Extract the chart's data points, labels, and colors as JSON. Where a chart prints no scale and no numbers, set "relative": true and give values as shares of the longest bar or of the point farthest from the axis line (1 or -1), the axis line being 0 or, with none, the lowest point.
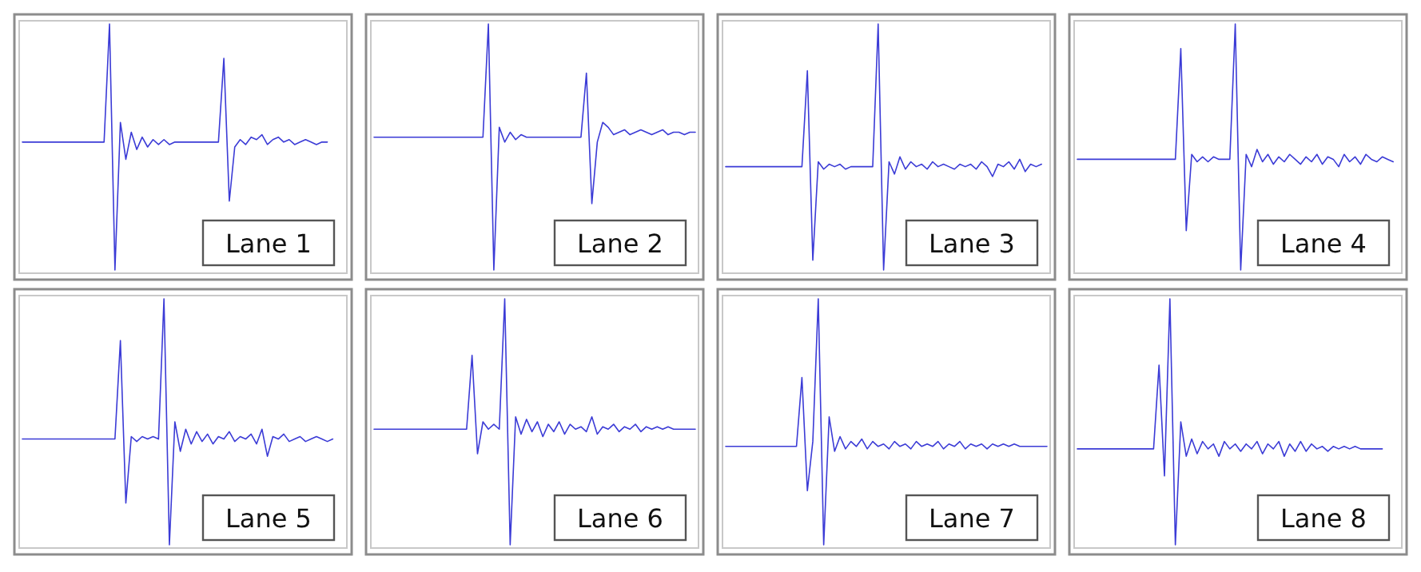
{
  "chart_data": [
    {
      "type": "line",
      "title": "Lane 1",
      "relative": true,
      "color": "#3b3bd6",
      "categories": [
        null,
        null,
        null,
        null,
        null,
        null,
        null,
        null,
        null,
        null,
        null,
        null,
        null,
        null,
        null,
        null,
        null,
        null,
        null,
        null,
        null,
        null,
        null,
        null,
        null,
        null,
        null,
        null,
        null,
        null,
        null,
        null,
        null,
        null,
        null,
        null,
        null,
        null,
        null,
        null,
        null,
        null,
        null,
        null,
        null,
        null,
        null,
        null,
        null,
        null,
        null,
        null,
        null,
        null,
        null,
        null,
        null,
        null,
        null,
        null
      ],
      "values": [
        0.52,
        0.52,
        0.52,
        0.52,
        0.52,
        0.52,
        0.52,
        0.52,
        0.52,
        0.52,
        0.52,
        0.52,
        0.52,
        0.52,
        0.52,
        0.52,
        1,
        0,
        0.6,
        0.45,
        0.56,
        0.49,
        0.54,
        0.5,
        0.53,
        0.51,
        0.53,
        0.51,
        0.52,
        0.52,
        0.52,
        0.52,
        0.52,
        0.52,
        0.52,
        0.52,
        0.52,
        0.86,
        0.28,
        0.5,
        0.53,
        0.51,
        0.54,
        0.53,
        0.55,
        0.51,
        0.53,
        0.54,
        0.52,
        0.53,
        0.51,
        0.52,
        0.53,
        0.52,
        0.51,
        0.52,
        0.52,
        null,
        null,
        null
      ]
    },
    {
      "type": "line",
      "title": "Lane 2",
      "relative": true,
      "color": "#3b3bd6",
      "categories": [
        null,
        null,
        null,
        null,
        null,
        null,
        null,
        null,
        null,
        null,
        null,
        null,
        null,
        null,
        null,
        null,
        null,
        null,
        null,
        null,
        null,
        null,
        null,
        null,
        null,
        null,
        null,
        null,
        null,
        null,
        null,
        null,
        null,
        null,
        null,
        null,
        null,
        null,
        null,
        null,
        null,
        null,
        null,
        null,
        null,
        null,
        null,
        null,
        null,
        null,
        null,
        null,
        null,
        null,
        null,
        null,
        null,
        null,
        null,
        null
      ],
      "values": [
        0.54,
        0.54,
        0.54,
        0.54,
        0.54,
        0.54,
        0.54,
        0.54,
        0.54,
        0.54,
        0.54,
        0.54,
        0.54,
        0.54,
        0.54,
        0.54,
        0.54,
        0.54,
        0.54,
        0.54,
        0.54,
        1,
        0,
        0.58,
        0.52,
        0.56,
        0.53,
        0.55,
        0.54,
        0.54,
        0.54,
        0.54,
        0.54,
        0.54,
        0.54,
        0.54,
        0.54,
        0.54,
        0.54,
        0.8,
        0.27,
        0.52,
        0.6,
        0.58,
        0.55,
        0.56,
        0.57,
        0.55,
        0.56,
        0.57,
        0.56,
        0.55,
        0.56,
        0.57,
        0.55,
        0.56,
        0.56,
        0.55,
        0.56,
        0.56
      ]
    },
    {
      "type": "line",
      "title": "Lane 3",
      "relative": true,
      "color": "#3b3bd6",
      "categories": [
        null,
        null,
        null,
        null,
        null,
        null,
        null,
        null,
        null,
        null,
        null,
        null,
        null,
        null,
        null,
        null,
        null,
        null,
        null,
        null,
        null,
        null,
        null,
        null,
        null,
        null,
        null,
        null,
        null,
        null,
        null,
        null,
        null,
        null,
        null,
        null,
        null,
        null,
        null,
        null,
        null,
        null,
        null,
        null,
        null,
        null,
        null,
        null,
        null,
        null,
        null,
        null,
        null,
        null,
        null,
        null,
        null,
        null,
        null,
        null
      ],
      "values": [
        0.42,
        0.42,
        0.42,
        0.42,
        0.42,
        0.42,
        0.42,
        0.42,
        0.42,
        0.42,
        0.42,
        0.42,
        0.42,
        0.42,
        0.42,
        0.81,
        0.04,
        0.44,
        0.41,
        0.43,
        0.42,
        0.43,
        0.41,
        0.42,
        0.42,
        0.42,
        0.42,
        0.42,
        1,
        0,
        0.44,
        0.39,
        0.46,
        0.41,
        0.44,
        0.42,
        0.43,
        0.41,
        0.44,
        0.42,
        0.43,
        0.42,
        0.41,
        0.43,
        0.42,
        0.43,
        0.41,
        0.44,
        0.42,
        0.38,
        0.43,
        0.42,
        0.44,
        0.41,
        0.45,
        0.4,
        0.43,
        0.42,
        0.43,
        null
      ]
    },
    {
      "type": "line",
      "title": "Lane 4",
      "relative": true,
      "color": "#3b3bd6",
      "categories": [
        null,
        null,
        null,
        null,
        null,
        null,
        null,
        null,
        null,
        null,
        null,
        null,
        null,
        null,
        null,
        null,
        null,
        null,
        null,
        null,
        null,
        null,
        null,
        null,
        null,
        null,
        null,
        null,
        null,
        null,
        null,
        null,
        null,
        null,
        null,
        null,
        null,
        null,
        null,
        null,
        null,
        null,
        null,
        null,
        null,
        null,
        null,
        null,
        null,
        null,
        null,
        null,
        null,
        null,
        null,
        null,
        null,
        null,
        null,
        null
      ],
      "values": [
        0.45,
        0.45,
        0.45,
        0.45,
        0.45,
        0.45,
        0.45,
        0.45,
        0.45,
        0.45,
        0.45,
        0.45,
        0.45,
        0.45,
        0.45,
        0.45,
        0.45,
        0.45,
        0.45,
        0.9,
        0.16,
        0.47,
        0.44,
        0.46,
        0.44,
        0.46,
        0.45,
        0.45,
        0.45,
        1,
        0,
        0.47,
        0.42,
        0.49,
        0.44,
        0.47,
        0.43,
        0.46,
        0.44,
        0.47,
        0.45,
        0.43,
        0.46,
        0.44,
        0.47,
        0.43,
        0.46,
        0.45,
        0.42,
        0.47,
        0.44,
        0.46,
        0.43,
        0.47,
        0.45,
        0.44,
        0.46,
        0.45,
        0.44,
        null
      ]
    },
    {
      "type": "line",
      "title": "Lane 5",
      "relative": true,
      "color": "#3b3bd6",
      "categories": [
        null,
        null,
        null,
        null,
        null,
        null,
        null,
        null,
        null,
        null,
        null,
        null,
        null,
        null,
        null,
        null,
        null,
        null,
        null,
        null,
        null,
        null,
        null,
        null,
        null,
        null,
        null,
        null,
        null,
        null,
        null,
        null,
        null,
        null,
        null,
        null,
        null,
        null,
        null,
        null,
        null,
        null,
        null,
        null,
        null,
        null,
        null,
        null,
        null,
        null,
        null,
        null,
        null,
        null,
        null,
        null,
        null,
        null,
        null,
        null
      ],
      "values": [
        0.43,
        0.43,
        0.43,
        0.43,
        0.43,
        0.43,
        0.43,
        0.43,
        0.43,
        0.43,
        0.43,
        0.43,
        0.43,
        0.43,
        0.43,
        0.43,
        0.43,
        0.43,
        0.83,
        0.17,
        0.44,
        0.42,
        0.44,
        0.43,
        0.44,
        0.43,
        1,
        0,
        0.5,
        0.38,
        0.47,
        0.41,
        0.46,
        0.42,
        0.45,
        0.41,
        0.44,
        0.43,
        0.46,
        0.42,
        0.44,
        0.43,
        0.45,
        0.41,
        0.47,
        0.36,
        0.44,
        0.43,
        0.45,
        0.42,
        0.43,
        0.44,
        0.42,
        0.43,
        0.44,
        0.43,
        0.42,
        0.43,
        null,
        null
      ]
    },
    {
      "type": "line",
      "title": "Lane 6",
      "relative": true,
      "color": "#3b3bd6",
      "categories": [
        null,
        null,
        null,
        null,
        null,
        null,
        null,
        null,
        null,
        null,
        null,
        null,
        null,
        null,
        null,
        null,
        null,
        null,
        null,
        null,
        null,
        null,
        null,
        null,
        null,
        null,
        null,
        null,
        null,
        null,
        null,
        null,
        null,
        null,
        null,
        null,
        null,
        null,
        null,
        null,
        null,
        null,
        null,
        null,
        null,
        null,
        null,
        null,
        null,
        null,
        null,
        null,
        null,
        null,
        null,
        null,
        null,
        null,
        null,
        null
      ],
      "values": [
        0.47,
        0.47,
        0.47,
        0.47,
        0.47,
        0.47,
        0.47,
        0.47,
        0.47,
        0.47,
        0.47,
        0.47,
        0.47,
        0.47,
        0.47,
        0.47,
        0.47,
        0.47,
        0.77,
        0.37,
        0.5,
        0.47,
        0.49,
        0.47,
        1,
        0,
        0.52,
        0.45,
        0.51,
        0.46,
        0.5,
        0.44,
        0.49,
        0.46,
        0.5,
        0.45,
        0.49,
        0.47,
        0.48,
        0.46,
        0.52,
        0.45,
        0.48,
        0.47,
        0.49,
        0.46,
        0.48,
        0.47,
        0.49,
        0.46,
        0.48,
        0.47,
        0.48,
        0.47,
        0.48,
        0.47,
        0.47,
        0.47,
        0.47,
        0.47
      ]
    },
    {
      "type": "line",
      "title": "Lane 7",
      "relative": true,
      "color": "#3b3bd6",
      "categories": [
        null,
        null,
        null,
        null,
        null,
        null,
        null,
        null,
        null,
        null,
        null,
        null,
        null,
        null,
        null,
        null,
        null,
        null,
        null,
        null,
        null,
        null,
        null,
        null,
        null,
        null,
        null,
        null,
        null,
        null,
        null,
        null,
        null,
        null,
        null,
        null,
        null,
        null,
        null,
        null,
        null,
        null,
        null,
        null,
        null,
        null,
        null,
        null,
        null,
        null,
        null,
        null,
        null,
        null,
        null,
        null,
        null,
        null,
        null,
        null
      ],
      "values": [
        0.4,
        0.4,
        0.4,
        0.4,
        0.4,
        0.4,
        0.4,
        0.4,
        0.4,
        0.4,
        0.4,
        0.4,
        0.4,
        0.4,
        0.68,
        0.22,
        0.42,
        1,
        0,
        0.52,
        0.38,
        0.44,
        0.39,
        0.42,
        0.4,
        0.43,
        0.39,
        0.42,
        0.4,
        0.41,
        0.39,
        0.42,
        0.4,
        0.41,
        0.39,
        0.42,
        0.4,
        0.41,
        0.4,
        0.42,
        0.39,
        0.41,
        0.4,
        0.42,
        0.39,
        0.41,
        0.4,
        0.41,
        0.39,
        0.41,
        0.4,
        0.41,
        0.4,
        0.41,
        0.4,
        0.4,
        0.4,
        0.4,
        0.4,
        0.4
      ]
    },
    {
      "type": "line",
      "title": "Lane 8",
      "relative": true,
      "color": "#3b3bd6",
      "categories": [
        null,
        null,
        null,
        null,
        null,
        null,
        null,
        null,
        null,
        null,
        null,
        null,
        null,
        null,
        null,
        null,
        null,
        null,
        null,
        null,
        null,
        null,
        null,
        null,
        null,
        null,
        null,
        null,
        null,
        null,
        null,
        null,
        null,
        null,
        null,
        null,
        null,
        null,
        null,
        null,
        null,
        null,
        null,
        null,
        null,
        null,
        null,
        null,
        null,
        null,
        null,
        null,
        null,
        null,
        null,
        null,
        null,
        null,
        null,
        null
      ],
      "values": [
        0.39,
        0.39,
        0.39,
        0.39,
        0.39,
        0.39,
        0.39,
        0.39,
        0.39,
        0.39,
        0.39,
        0.39,
        0.39,
        0.39,
        0.39,
        0.73,
        0.28,
        1,
        0,
        0.5,
        0.36,
        0.43,
        0.37,
        0.42,
        0.39,
        0.41,
        0.36,
        0.42,
        0.39,
        0.41,
        0.38,
        0.41,
        0.39,
        0.42,
        0.37,
        0.41,
        0.39,
        0.42,
        0.36,
        0.41,
        0.38,
        0.42,
        0.38,
        0.41,
        0.39,
        0.4,
        0.38,
        0.4,
        0.39,
        0.4,
        0.39,
        0.4,
        0.39,
        0.39,
        0.39,
        0.39,
        0.39,
        null,
        null,
        null
      ]
    }
  ]
}
